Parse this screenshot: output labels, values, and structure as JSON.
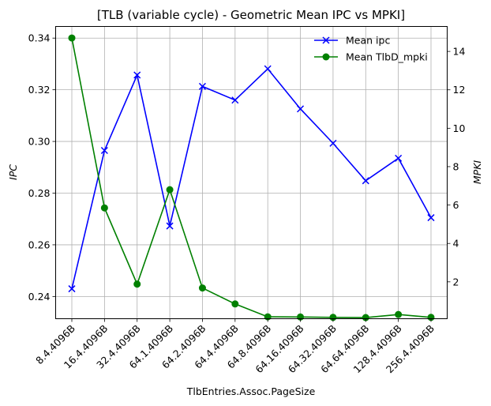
{
  "chart_data": {
    "type": "line",
    "title": "[TLB (variable cycle) - Geometric Mean IPC vs MPKI]",
    "xlabel": "TlbEntries.Assoc.PageSize",
    "ylabel_left": "IPC",
    "ylabel_right": "MPKI",
    "categories": [
      "8.4.4096B",
      "16.4.4096B",
      "32.4.4096B",
      "64.1.4096B",
      "64.2.4096B",
      "64.4.4096B",
      "64.8.4096B",
      "64.16.4096B",
      "64.32.4096B",
      "64.64.4096B",
      "128.4.4096B",
      "256.4.4096B"
    ],
    "y_left_ticks": [
      "0.24",
      "0.26",
      "0.28",
      "0.30",
      "0.32",
      "0.34"
    ],
    "y_right_ticks": [
      "2",
      "4",
      "6",
      "8",
      "10",
      "12",
      "14"
    ],
    "ylim_left": [
      0.2314,
      0.3445
    ],
    "ylim_right": [
      0.08,
      15.3
    ],
    "grid": true,
    "legend_position": "top-right",
    "series": [
      {
        "name": "Mean ipc",
        "axis": "left",
        "color": "#0000ff",
        "marker": "x",
        "values": [
          0.243,
          0.2965,
          0.3257,
          0.2673,
          0.3213,
          0.316,
          0.3281,
          0.3126,
          0.2993,
          0.2848,
          0.2935,
          0.2705
        ]
      },
      {
        "name": "Mean TlbD_mpki",
        "axis": "right",
        "color": "#008000",
        "marker": "o",
        "values": [
          14.7,
          5.85,
          1.88,
          6.8,
          1.68,
          0.85,
          0.18,
          0.17,
          0.15,
          0.14,
          0.3,
          0.15
        ]
      }
    ]
  }
}
